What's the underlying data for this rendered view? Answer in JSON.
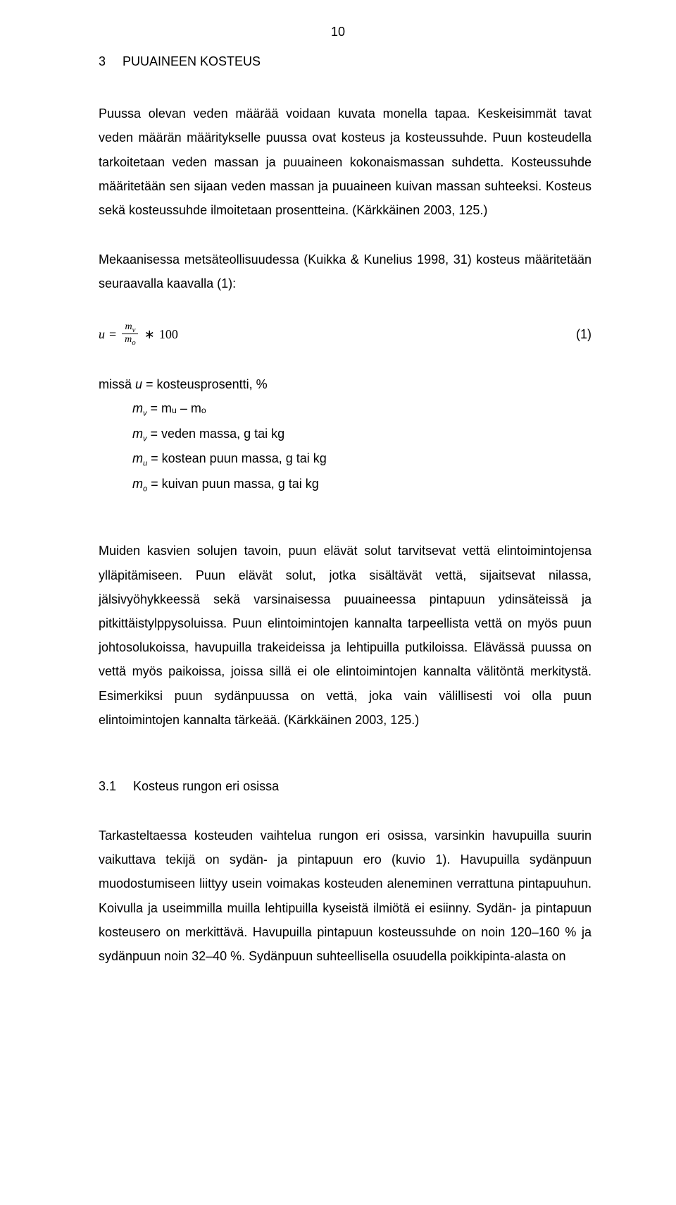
{
  "page_number": "10",
  "heading_number": "3",
  "heading_text": "PUUAINEEN KOSTEUS",
  "para1": "Puussa olevan veden määrää voidaan kuvata monella tapaa. Keskeisimmät tavat veden määrän määritykselle puussa ovat kosteus ja kosteussuhde. Puun kosteudella tarkoitetaan veden massan ja puuaineen kokonaismassan suhdetta. Kosteussuhde määritetään sen sijaan veden massan ja puuaineen kuivan massan suhteeksi. Kosteus sekä kosteussuhde ilmoitetaan prosentteina. (Kärkkäinen 2003, 125.)",
  "para2": "Mekaanisessa metsäteollisuudessa (Kuikka & Kunelius 1998, 31) kosteus määritetään seuraavalla kaavalla (1):",
  "formula": {
    "lhs_var": "u",
    "equals": "=",
    "numerator": "m",
    "numerator_sub": "v",
    "denominator": "m",
    "denominator_sub": "o",
    "times": "∗",
    "constant": "100",
    "eq_number": "(1)"
  },
  "defs": {
    "line1_prefix": "missä ",
    "line1_var": "u",
    "line1_rest": " = kosteusprosentti, %",
    "line2_var": "m",
    "line2_sub": "v",
    "line2_rest": " = mᵤ – mₒ",
    "line3_var": "m",
    "line3_sub": "v",
    "line3_rest": " = veden massa, g tai kg",
    "line4_var": "m",
    "line4_sub": "u",
    "line4_rest": " = kostean puun massa, g tai kg",
    "line5_var": "m",
    "line5_sub": "o",
    "line5_rest": " = kuivan puun massa, g tai kg"
  },
  "para3": "Muiden kasvien solujen tavoin, puun elävät solut tarvitsevat vettä elintoimintojensa ylläpitämiseen. Puun elävät solut, jotka sisältävät vettä, sijaitsevat nilassa, jälsivyöhykkeessä sekä varsinaisessa puuaineessa pintapuun ydinsäteissä ja pitkittäistylppysoluissa. Puun elintoimintojen kannalta tarpeellista vettä on myös puun johtosolukoissa, havupuilla trakeideissa ja lehtipuilla putkiloissa. Elävässä puussa on vettä myös paikoissa, joissa sillä ei ole elintoimintojen kannalta välitöntä merkitystä. Esimerkiksi puun sydänpuussa on vettä, joka vain välillisesti voi olla puun elintoimintojen kannalta tärkeää. (Kärkkäinen 2003, 125.)",
  "subheading_number": "3.1",
  "subheading_text": "Kosteus rungon eri osissa",
  "para4": "Tarkasteltaessa kosteuden vaihtelua rungon eri osissa, varsinkin havupuilla suurin vaikuttava tekijä on sydän- ja pintapuun ero (kuvio 1). Havupuilla sydänpuun muodostumiseen liittyy usein voimakas kosteuden aleneminen verrattuna pintapuuhun. Koivulla ja useimmilla muilla lehtipuilla kyseistä ilmiötä ei esiinny. Sydän- ja pintapuun kosteusero on merkittävä. Havupuilla pintapuun kosteussuhde on noin 120–160 % ja sydänpuun noin 32–40 %. Sydänpuun suhteellisella osuudella poikkipinta-alasta on"
}
